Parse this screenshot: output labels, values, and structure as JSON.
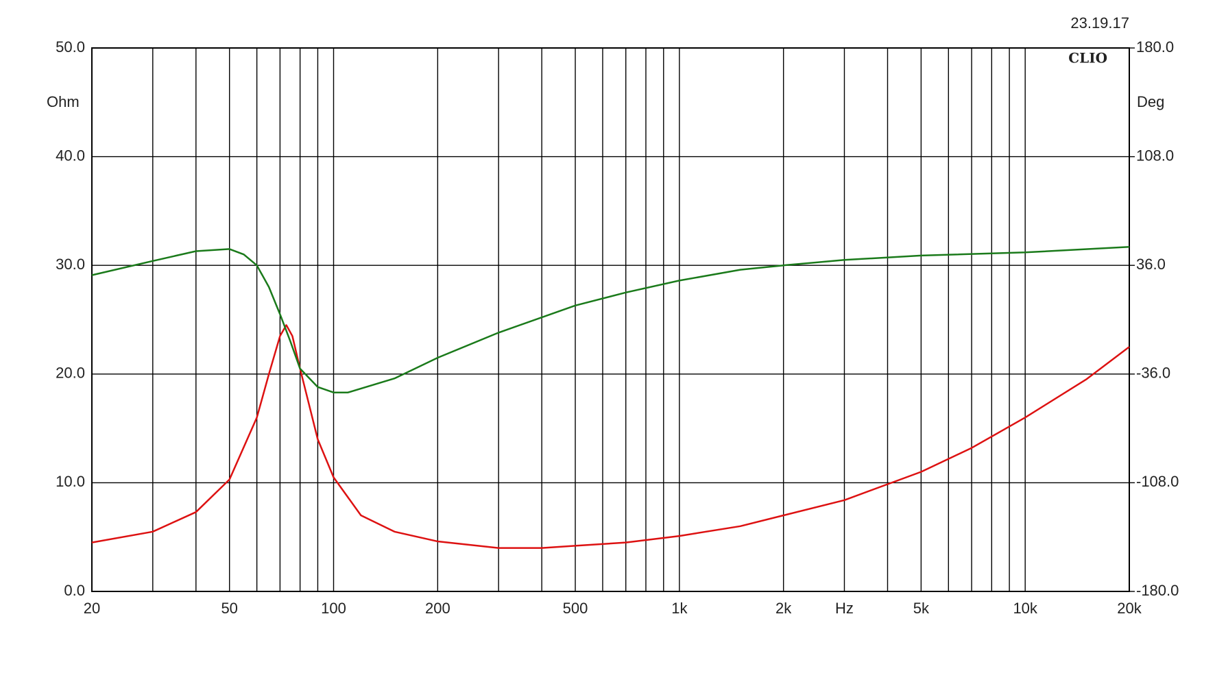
{
  "chart_data": {
    "type": "line",
    "timestamp": "23.19.17",
    "brand": "CLIO",
    "ylabel": "Ohm",
    "y2label": "Deg",
    "xscale": "log",
    "xlim": [
      20,
      20000
    ],
    "xticks": [
      20,
      50,
      100,
      200,
      500,
      {
        "value": 1000,
        "label": "1k"
      },
      {
        "value": 2000,
        "label": "2k"
      },
      {
        "value": 3000,
        "label": "Hz"
      },
      {
        "value": 5000,
        "label": "5k"
      },
      {
        "value": 10000,
        "label": "10k"
      },
      {
        "value": 20000,
        "label": "20k"
      }
    ],
    "xgrid": [
      30,
      40,
      60,
      70,
      80,
      90,
      300,
      400,
      600,
      700,
      800,
      900,
      4000,
      6000,
      7000,
      8000,
      9000
    ],
    "ylim": [
      0,
      50
    ],
    "yticks": [
      {
        "value": 0,
        "label": "0.0"
      },
      {
        "value": 10,
        "label": "10.0"
      },
      {
        "value": 20,
        "label": "20.0"
      },
      {
        "value": 30,
        "label": "30.0"
      },
      {
        "value": 40,
        "label": "40.0"
      },
      {
        "value": 50,
        "label": "50.0"
      }
    ],
    "y2lim": [
      -180,
      180
    ],
    "y2ticks": [
      {
        "value": -180,
        "label": "-180.0"
      },
      {
        "value": -108,
        "label": "-108.0"
      },
      {
        "value": -36,
        "label": "-36.0"
      },
      {
        "value": 36,
        "label": "36.0"
      },
      {
        "value": 108,
        "label": "108.0"
      },
      {
        "value": 180,
        "label": "180.0"
      }
    ],
    "grid": true,
    "series": [
      {
        "color": "#dd1111",
        "axis": "y",
        "x": [
          20,
          30,
          40,
          50,
          60,
          65,
          70,
          73,
          76,
          80,
          90,
          100,
          120,
          150,
          200,
          300,
          400,
          500,
          700,
          1000,
          1500,
          2000,
          3000,
          5000,
          7000,
          10000,
          15000,
          20000
        ],
        "values": [
          4.5,
          5.5,
          7.3,
          10.3,
          16,
          20,
          23.5,
          24.5,
          23.5,
          20.5,
          14,
          10.5,
          7,
          5.5,
          4.6,
          4.0,
          4.0,
          4.2,
          4.5,
          5.1,
          6.0,
          7.0,
          8.4,
          11.0,
          13.2,
          16.0,
          19.5,
          22.5
        ]
      },
      {
        "color": "#1a7a1a",
        "axis": "y2",
        "x": [
          20,
          30,
          40,
          50,
          55,
          60,
          65,
          70,
          75,
          80,
          90,
          100,
          110,
          150,
          200,
          300,
          500,
          700,
          1000,
          1500,
          2000,
          3000,
          5000,
          10000,
          20000
        ],
        "values": [
          29.5,
          38.9,
          45.4,
          46.8,
          43.2,
          36,
          21.6,
          3.6,
          -14.4,
          -32.4,
          -44.6,
          -48.2,
          -48.2,
          -38.9,
          -25.2,
          -8.6,
          9.4,
          18,
          25.9,
          33.1,
          36,
          39.6,
          42.5,
          44.6,
          48.2
        ]
      }
    ]
  }
}
